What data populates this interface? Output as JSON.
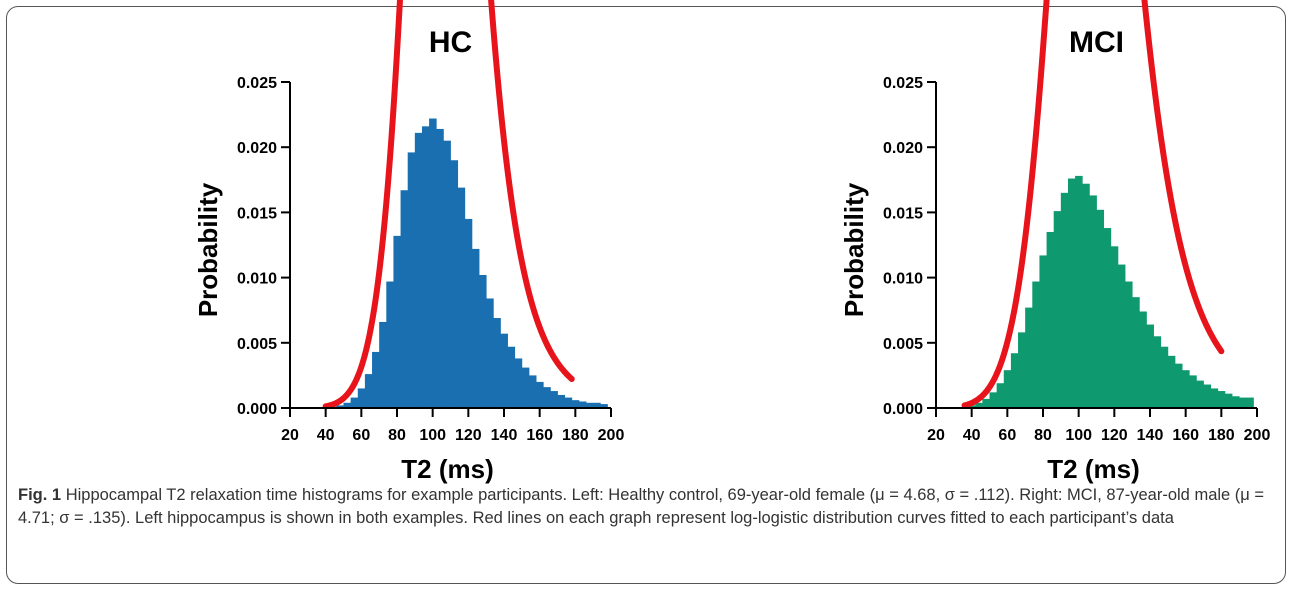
{
  "chart_data": [
    {
      "type": "bar",
      "title": "HC",
      "xlabel": "T2  (ms)",
      "ylabel": "Probability",
      "xlim": [
        20,
        200
      ],
      "ylim": [
        0,
        0.025
      ],
      "xticks": [
        "20",
        "40",
        "60",
        "80",
        "100",
        "120",
        "140",
        "160",
        "180",
        "200"
      ],
      "yticks": [
        "0.000",
        "0.005",
        "0.010",
        "0.015",
        "0.020",
        "0.025"
      ],
      "bar_color": "#1a6fb0",
      "fit_color": "#e8141b",
      "histogram": {
        "x": [
          44,
          48,
          52,
          56,
          60,
          64,
          68,
          72,
          76,
          80,
          84,
          88,
          92,
          96,
          100,
          104,
          108,
          112,
          116,
          120,
          124,
          128,
          132,
          136,
          140,
          144,
          148,
          152,
          156,
          160,
          164,
          168,
          172,
          176,
          180,
          184,
          188,
          192,
          196
        ],
        "y": [
          0.0001,
          0.0002,
          0.0004,
          0.0008,
          0.0015,
          0.0026,
          0.0043,
          0.0066,
          0.0097,
          0.0132,
          0.0167,
          0.0196,
          0.0211,
          0.0216,
          0.0222,
          0.0214,
          0.0205,
          0.019,
          0.0169,
          0.0145,
          0.0122,
          0.0102,
          0.0084,
          0.0069,
          0.0057,
          0.0047,
          0.0038,
          0.0031,
          0.0025,
          0.002,
          0.0016,
          0.0013,
          0.001,
          0.0008,
          0.0006,
          0.0005,
          0.0004,
          0.0004,
          0.0003
        ]
      },
      "fit": {
        "distribution": "log-logistic",
        "mu": 4.68,
        "sigma": 0.112,
        "x_range": [
          40,
          178
        ]
      }
    },
    {
      "type": "bar",
      "title": "MCI",
      "xlabel": "T2  (ms)",
      "ylabel": "Probability",
      "xlim": [
        20,
        200
      ],
      "ylim": [
        0,
        0.025
      ],
      "xticks": [
        "20",
        "40",
        "60",
        "80",
        "100",
        "120",
        "140",
        "160",
        "180",
        "200"
      ],
      "yticks": [
        "0.000",
        "0.005",
        "0.010",
        "0.015",
        "0.020",
        "0.025"
      ],
      "bar_color": "#0e9a6e",
      "fit_color": "#e8141b",
      "histogram": {
        "x": [
          40,
          44,
          48,
          52,
          56,
          60,
          64,
          68,
          72,
          76,
          80,
          84,
          88,
          92,
          96,
          100,
          104,
          108,
          112,
          116,
          120,
          124,
          128,
          132,
          136,
          140,
          144,
          148,
          152,
          156,
          160,
          164,
          168,
          172,
          176,
          180,
          184,
          188,
          192,
          196
        ],
        "y": [
          0.0002,
          0.0004,
          0.0007,
          0.0012,
          0.0019,
          0.0029,
          0.0042,
          0.0058,
          0.0077,
          0.0097,
          0.0117,
          0.0135,
          0.0151,
          0.0165,
          0.0176,
          0.0178,
          0.0172,
          0.0163,
          0.0152,
          0.0138,
          0.0124,
          0.011,
          0.0097,
          0.0085,
          0.0074,
          0.0064,
          0.0055,
          0.0047,
          0.004,
          0.0034,
          0.0029,
          0.0025,
          0.0021,
          0.0018,
          0.0015,
          0.0013,
          0.0011,
          0.0009,
          0.0008,
          0.0008
        ]
      },
      "fit": {
        "distribution": "log-logistic",
        "mu": 4.71,
        "sigma": 0.135,
        "x_range": [
          36,
          180
        ]
      }
    }
  ],
  "caption": {
    "lead": "Fig. 1",
    "text": "Hippocampal T2 relaxation time histograms for example participants. Left: Healthy control, 69-year-old female (μ = 4.68, σ = .112). Right: MCI, 87-year-old male (μ = 4.71; σ = .135). Left hippocampus is shown in both examples. Red lines on each graph represent log-logistic distribution curves fitted to each participant’s data"
  }
}
